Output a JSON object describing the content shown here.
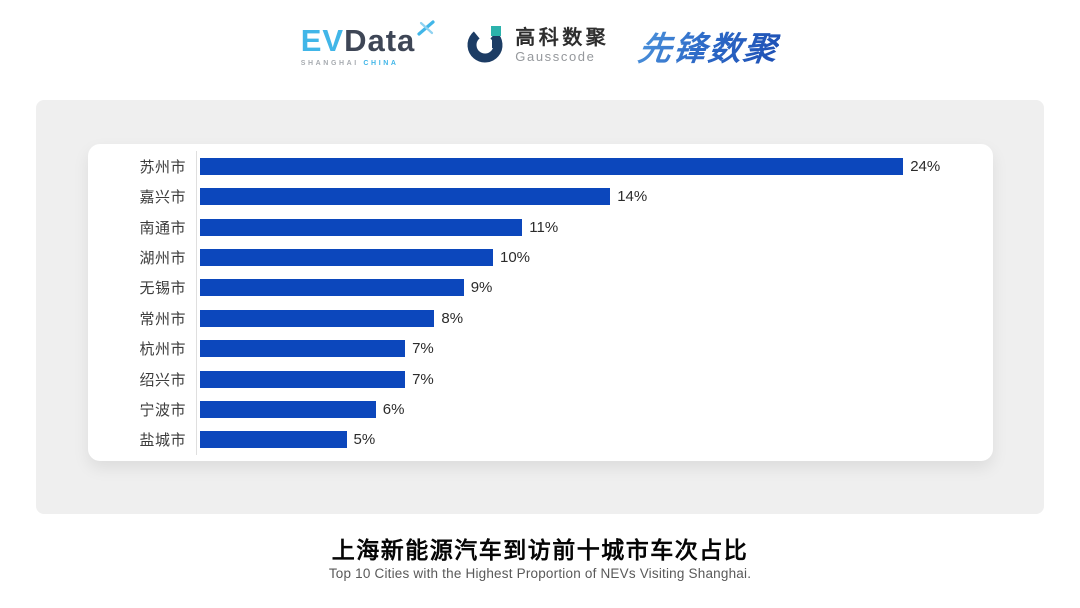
{
  "header": {
    "evdata": {
      "part1": "EV",
      "part2": "Data",
      "subtext_left": "SHANGHAI",
      "subtext_right": "CHINA"
    },
    "gausscode": {
      "name_cn": "高科数聚",
      "name_en": "Gausscode"
    },
    "xianfeng": {
      "name_cn": "先锋数聚"
    }
  },
  "chart_data": {
    "type": "bar",
    "orientation": "horizontal",
    "title": "上海新能源汽车到访前十城市车次占比",
    "categories": [
      "苏州市",
      "嘉兴市",
      "南通市",
      "湖州市",
      "无锡市",
      "常州市",
      "杭州市",
      "绍兴市",
      "宁波市",
      "盐城市"
    ],
    "values": [
      24,
      14,
      11,
      10,
      9,
      8,
      7,
      7,
      6,
      5
    ],
    "value_suffix": "%",
    "xlabel": "",
    "ylabel": "",
    "xlim": [
      0,
      24
    ],
    "grid": false,
    "legend": false,
    "bar_color": "#0C47BC",
    "sorted": "descending"
  },
  "footer": {
    "title": "上海新能源汽车到访前十城市车次占比",
    "subtitle": "Top 10 Cities with the Highest Proportion of  NEVs Visiting Shanghai."
  },
  "colors": {
    "bar": "#0C47BC",
    "panel_background": "#EFEFEF",
    "card_background": "#FFFFFF",
    "axis_line": "#DFDFDF",
    "evdata_blue": "#41B6E8",
    "evdata_dark": "#3E4656",
    "gausscode_navy": "#1C3C64",
    "gausscode_teal": "#2CB2AC",
    "xianfeng_gradient_start": "#4E95DC",
    "xianfeng_gradient_end": "#1D4FB4"
  }
}
